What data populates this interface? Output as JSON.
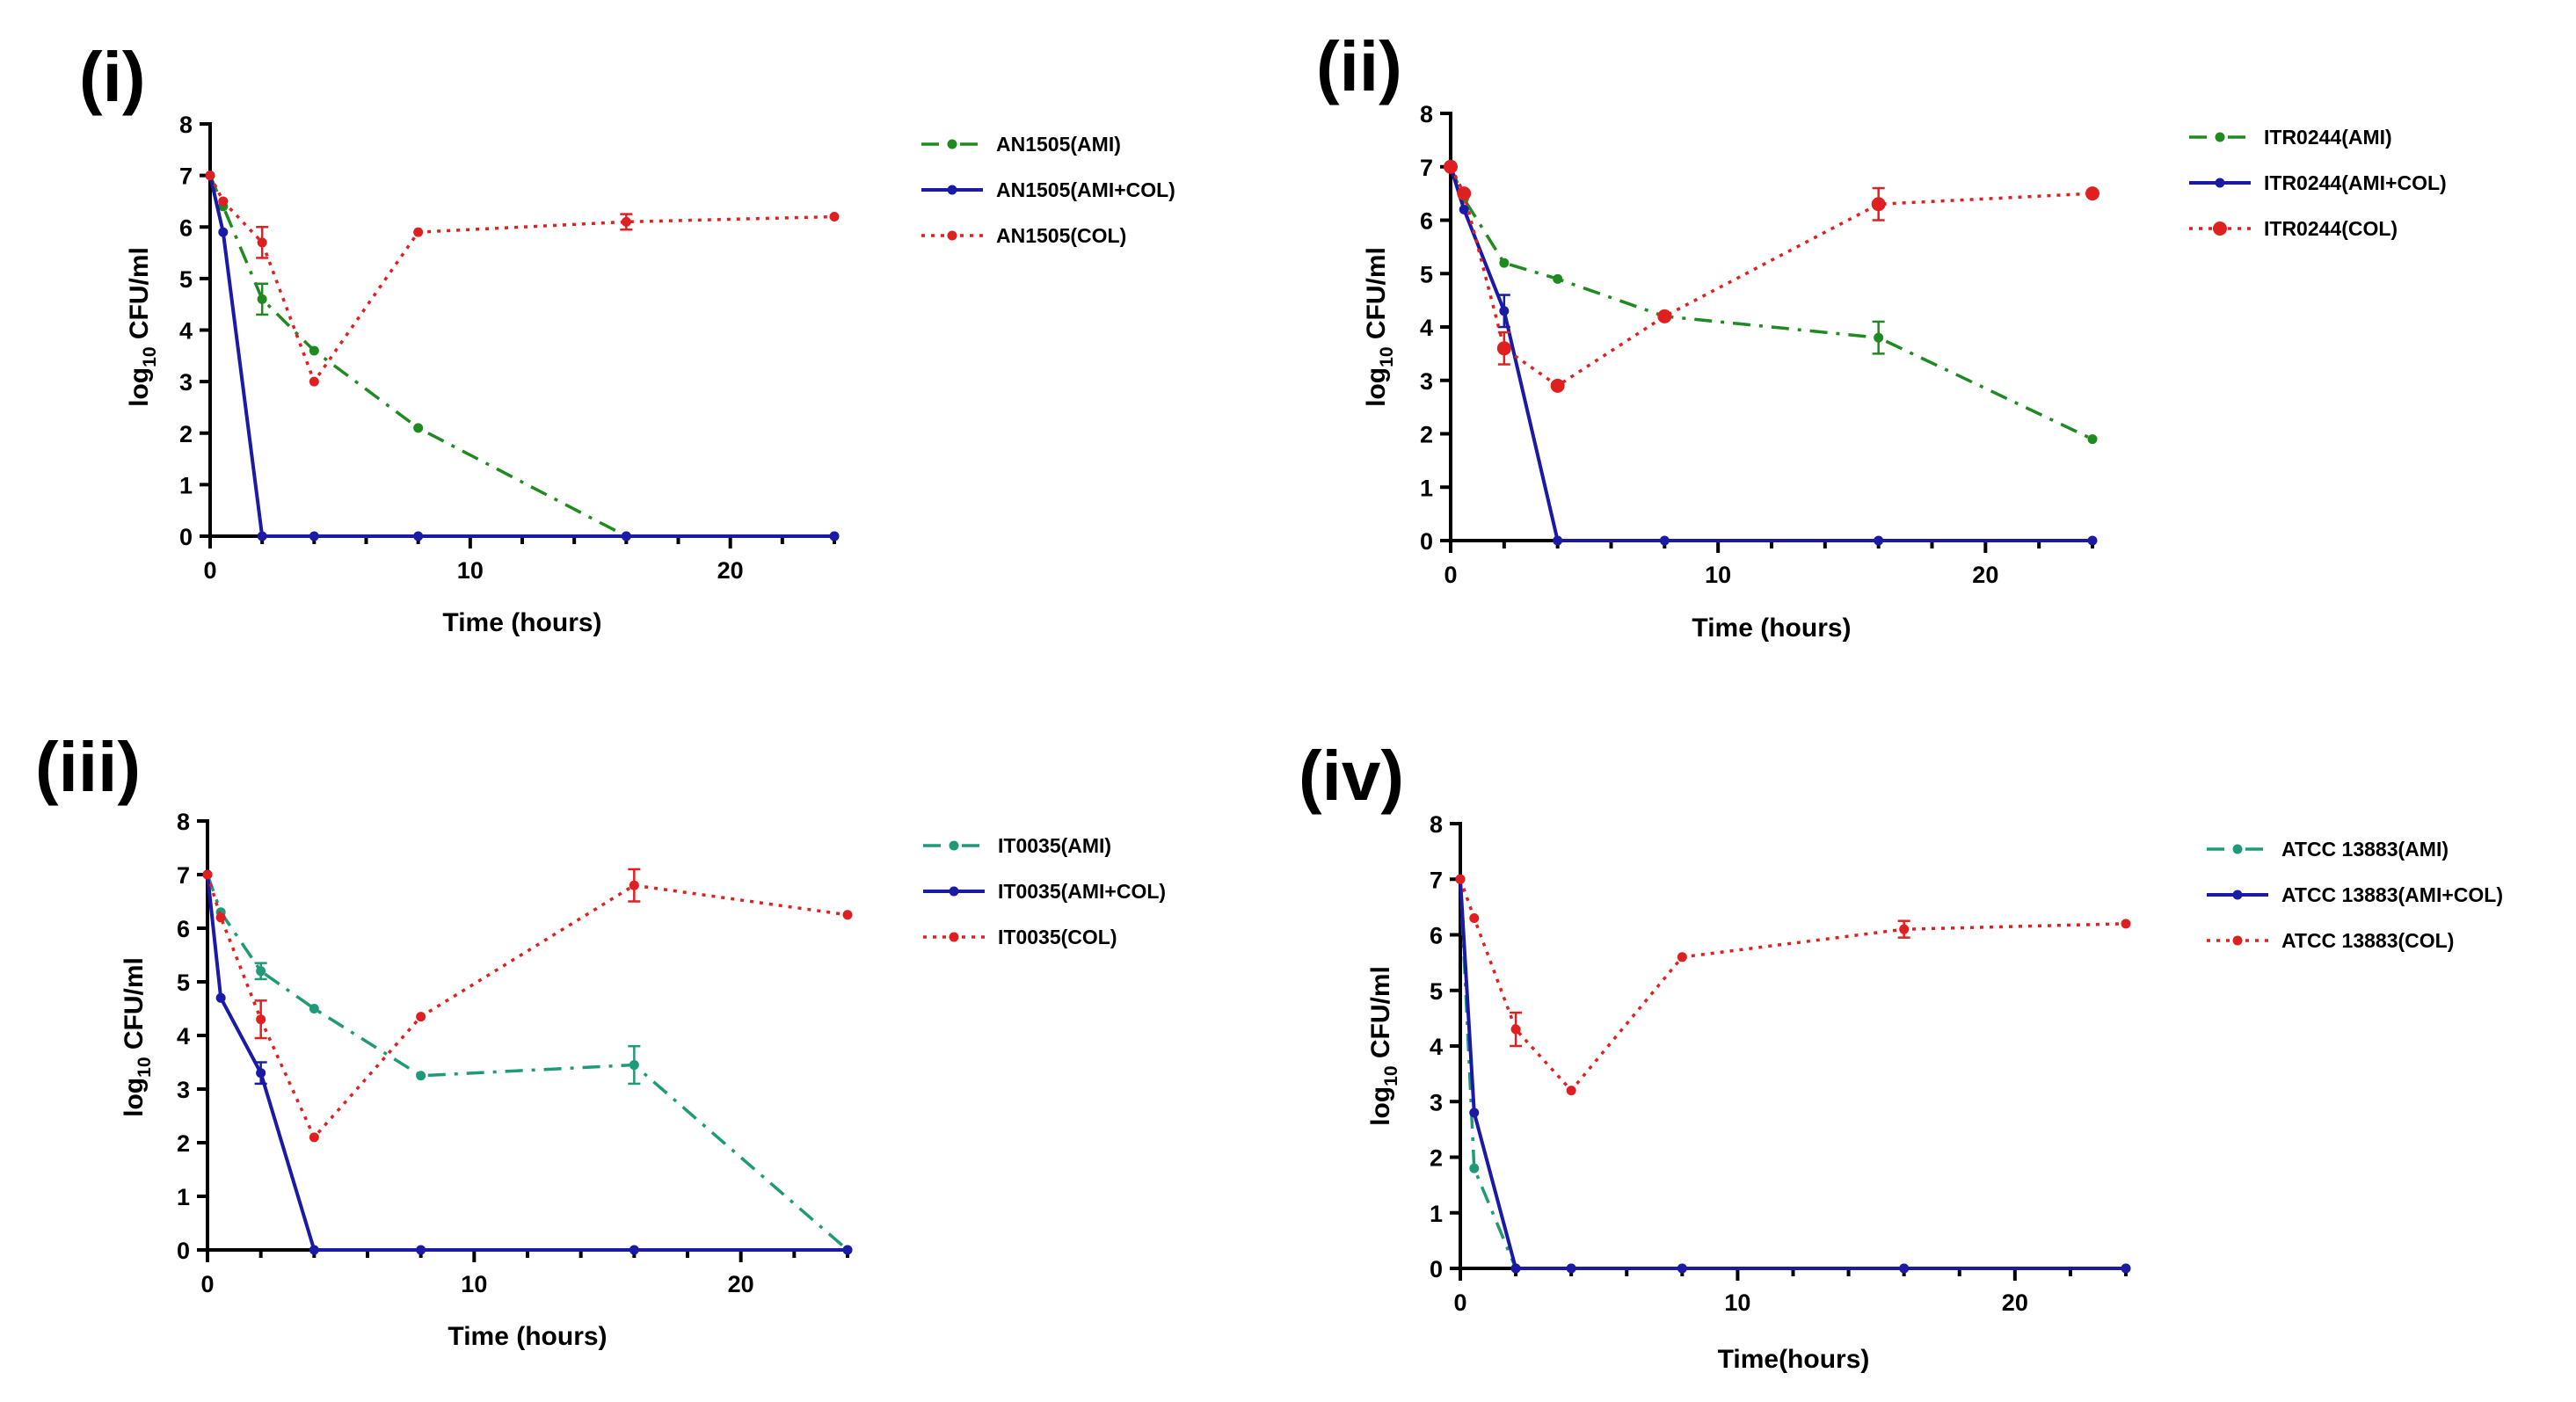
{
  "colors": {
    "ami_green": "#1f8a1f",
    "ami_teal": "#1f9a78",
    "combo_blue": "#1a1aa6",
    "col_red": "#e02020"
  },
  "chart_data": [
    {
      "type": "line",
      "panel_label": "(i)",
      "xlabel": "Time (hours)",
      "ylabel": "log10 CFU/ml",
      "xlim": [
        0,
        24
      ],
      "ylim": [
        0,
        8
      ],
      "xticks": [
        0,
        10,
        20
      ],
      "yticks": [
        0,
        1,
        2,
        3,
        4,
        5,
        6,
        7,
        8
      ],
      "legend_position": "top-right",
      "series": [
        {
          "name": "AN1505(AMI)",
          "color_key": "ami_green",
          "line_style": "dashdot",
          "x": [
            0,
            0.5,
            2,
            4,
            8,
            16,
            24
          ],
          "y": [
            7.0,
            6.4,
            4.6,
            3.6,
            2.1,
            0,
            0
          ],
          "err": [
            0,
            0,
            0.3,
            0,
            0,
            0,
            0
          ]
        },
        {
          "name": "AN1505(AMI+COL)",
          "color_key": "combo_blue",
          "line_style": "solid",
          "x": [
            0,
            0.5,
            2,
            4,
            8,
            16,
            24
          ],
          "y": [
            7.0,
            5.9,
            0,
            0,
            0,
            0,
            0
          ],
          "err": [
            0,
            0,
            0,
            0,
            0,
            0,
            0
          ]
        },
        {
          "name": "AN1505(COL)",
          "color_key": "col_red",
          "line_style": "dotted",
          "x": [
            0,
            0.5,
            2,
            4,
            8,
            16,
            24
          ],
          "y": [
            7.0,
            6.5,
            5.7,
            3.0,
            5.9,
            6.1,
            6.2
          ],
          "err": [
            0,
            0,
            0.3,
            0,
            0,
            0.15,
            0
          ]
        }
      ]
    },
    {
      "type": "line",
      "panel_label": "(ii)",
      "xlabel": "Time (hours)",
      "ylabel": "log10 CFU/ml",
      "xlim": [
        0,
        24
      ],
      "ylim": [
        0,
        8
      ],
      "xticks": [
        0,
        10,
        20
      ],
      "yticks": [
        0,
        1,
        2,
        3,
        4,
        5,
        6,
        7,
        8
      ],
      "legend_position": "top-right",
      "series": [
        {
          "name": "ITR0244(AMI)",
          "color_key": "ami_green",
          "line_style": "dashdot",
          "x": [
            0,
            0.5,
            2,
            4,
            8,
            16,
            24
          ],
          "y": [
            7.0,
            6.4,
            5.2,
            4.9,
            4.2,
            3.8,
            1.9
          ],
          "err": [
            0,
            0,
            0,
            0,
            0,
            0.3,
            0
          ]
        },
        {
          "name": "ITR0244(AMI+COL)",
          "color_key": "combo_blue",
          "line_style": "solid",
          "x": [
            0,
            0.5,
            2,
            4,
            8,
            16,
            24
          ],
          "y": [
            7.0,
            6.2,
            4.3,
            0,
            0,
            0,
            0
          ],
          "err": [
            0,
            0,
            0.3,
            0,
            0,
            0,
            0
          ]
        },
        {
          "name": "ITR0244(COL)",
          "color_key": "col_red",
          "line_style": "dotted",
          "x": [
            0,
            0.5,
            2,
            4,
            8,
            16,
            24
          ],
          "y": [
            7.0,
            6.5,
            3.6,
            2.9,
            4.2,
            6.3,
            6.5
          ],
          "err": [
            0,
            0,
            0.3,
            0,
            0,
            0.3,
            0
          ]
        }
      ]
    },
    {
      "type": "line",
      "panel_label": "(iii)",
      "xlabel": "Time (hours)",
      "ylabel": "log10 CFU/ml",
      "xlim": [
        0,
        24
      ],
      "ylim": [
        0,
        8
      ],
      "xticks": [
        0,
        10,
        20
      ],
      "yticks": [
        0,
        1,
        2,
        3,
        4,
        5,
        6,
        7,
        8
      ],
      "legend_position": "top-right",
      "series": [
        {
          "name": "IT0035(AMI)",
          "color_key": "ami_teal",
          "line_style": "dashdot",
          "x": [
            0,
            0.5,
            2,
            4,
            8,
            16,
            24
          ],
          "y": [
            7.0,
            6.3,
            5.2,
            4.5,
            3.25,
            3.45,
            0
          ],
          "err": [
            0,
            0,
            0.15,
            0,
            0,
            0.35,
            0
          ]
        },
        {
          "name": "IT0035(AMI+COL)",
          "color_key": "combo_blue",
          "line_style": "solid",
          "x": [
            0,
            0.5,
            2,
            4,
            8,
            16,
            24
          ],
          "y": [
            7.0,
            4.7,
            3.3,
            0,
            0,
            0,
            0
          ],
          "err": [
            0,
            0,
            0.2,
            0,
            0,
            0,
            0
          ]
        },
        {
          "name": "IT0035(COL)",
          "color_key": "col_red",
          "line_style": "dotted",
          "x": [
            0,
            0.5,
            2,
            4,
            8,
            16,
            24
          ],
          "y": [
            7.0,
            6.2,
            4.3,
            2.1,
            4.35,
            6.8,
            6.25
          ],
          "err": [
            0,
            0,
            0.35,
            0,
            0,
            0.3,
            0
          ]
        }
      ]
    },
    {
      "type": "line",
      "panel_label": "(iv)",
      "xlabel": "Time(hours)",
      "ylabel": "log10 CFU/ml",
      "xlim": [
        0,
        24
      ],
      "ylim": [
        0,
        8
      ],
      "xticks": [
        0,
        10,
        20
      ],
      "yticks": [
        0,
        1,
        2,
        3,
        4,
        5,
        6,
        7,
        8
      ],
      "legend_position": "top-right",
      "series": [
        {
          "name": "ATCC 13883(AMI)",
          "color_key": "ami_teal",
          "line_style": "dashdot",
          "x": [
            0,
            0.5,
            2,
            4,
            8,
            16,
            24
          ],
          "y": [
            7.0,
            1.8,
            0,
            0,
            0,
            0,
            0
          ],
          "err": [
            0,
            0,
            0,
            0,
            0,
            0,
            0
          ]
        },
        {
          "name": "ATCC 13883(AMI+COL)",
          "color_key": "combo_blue",
          "line_style": "solid",
          "x": [
            0,
            0.5,
            2,
            4,
            8,
            16,
            24
          ],
          "y": [
            7.0,
            2.8,
            0,
            0,
            0,
            0,
            0
          ],
          "err": [
            0,
            0,
            0,
            0,
            0,
            0,
            0
          ]
        },
        {
          "name": "ATCC 13883(COL)",
          "color_key": "col_red",
          "line_style": "dotted",
          "x": [
            0,
            0.5,
            2,
            4,
            8,
            16,
            24
          ],
          "y": [
            7.0,
            6.3,
            4.3,
            3.2,
            5.6,
            6.1,
            6.2
          ],
          "err": [
            0,
            0,
            0.3,
            0,
            0,
            0.15,
            0
          ]
        }
      ]
    }
  ]
}
